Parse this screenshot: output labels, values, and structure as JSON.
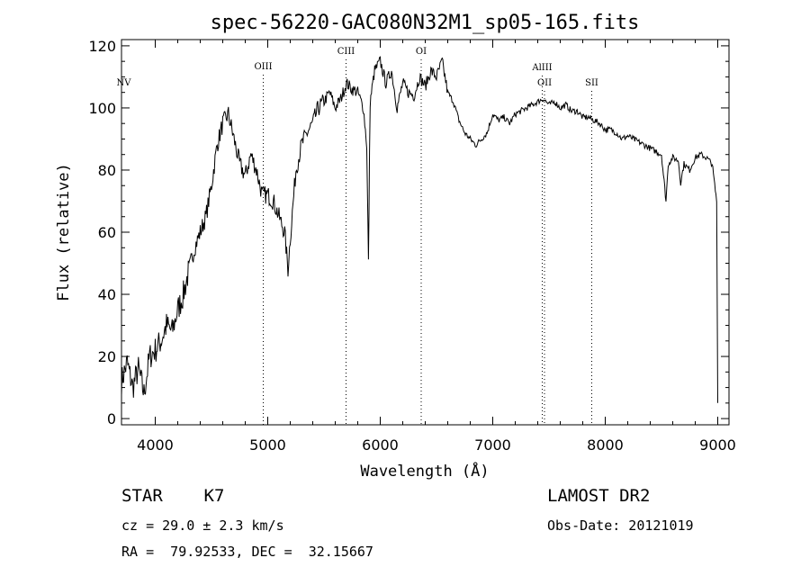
{
  "chart_data": {
    "type": "line",
    "title": "spec-56220-GAC080N32M1_sp05-165.fits",
    "xlabel": "Wavelength (Å)",
    "ylabel": "Flux (relative)",
    "xlim": [
      3700,
      9100
    ],
    "ylim": [
      -2,
      122
    ],
    "xticks": [
      4000,
      5000,
      6000,
      7000,
      8000,
      9000
    ],
    "yticks": [
      0,
      20,
      40,
      60,
      80,
      100,
      120
    ],
    "grid": false,
    "line_color": "#000000",
    "series": [
      {
        "x": [
          3700,
          3750,
          3800,
          3850,
          3900,
          3950,
          4000,
          4050,
          4100,
          4150,
          4200,
          4250,
          4300,
          4350,
          4400,
          4450,
          4500,
          4550,
          4600,
          4650,
          4700,
          4750,
          4800,
          4850,
          4900,
          4950,
          5000,
          5050,
          5100,
          5150,
          5180,
          5200,
          5250,
          5300,
          5350,
          5400,
          5450,
          5500,
          5550,
          5600,
          5650,
          5700,
          5750,
          5800,
          5850,
          5880,
          5895,
          5910,
          5950,
          6000,
          6050,
          6100,
          6150,
          6200,
          6250,
          6300,
          6350,
          6400,
          6450,
          6500,
          6550,
          6600,
          6650,
          6700,
          6750,
          6800,
          6850,
          6900,
          6950,
          7000,
          7050,
          7100,
          7150,
          7200,
          7250,
          7300,
          7350,
          7400,
          7450,
          7500,
          7550,
          7600,
          7650,
          7700,
          7750,
          7800,
          7850,
          7900,
          7950,
          8000,
          8050,
          8100,
          8150,
          8200,
          8250,
          8300,
          8350,
          8400,
          8450,
          8500,
          8540,
          8560,
          8600,
          8650,
          8670,
          8700,
          8750,
          8800,
          8850,
          8900,
          8950,
          8990,
          9000
        ],
        "y": [
          12,
          18,
          10,
          16,
          8,
          20,
          22,
          25,
          30,
          28,
          35,
          40,
          48,
          55,
          60,
          65,
          75,
          88,
          95,
          98,
          90,
          82,
          78,
          85,
          80,
          72,
          72,
          70,
          65,
          60,
          48,
          58,
          80,
          88,
          92,
          95,
          100,
          102,
          105,
          100,
          103,
          108,
          106,
          105,
          100,
          88,
          50,
          102,
          112,
          115,
          108,
          112,
          100,
          108,
          105,
          104,
          110,
          107,
          112,
          110,
          115,
          105,
          102,
          96,
          92,
          90,
          88,
          90,
          92,
          98,
          96,
          97,
          95,
          98,
          99,
          100,
          101,
          102,
          103,
          101,
          102,
          100,
          101,
          99,
          99,
          97,
          97,
          96,
          95,
          93,
          93,
          92,
          90,
          91,
          90,
          89,
          88,
          87,
          86,
          85,
          70,
          82,
          84,
          83,
          76,
          82,
          80,
          84,
          85,
          84,
          82,
          70,
          5
        ]
      }
    ],
    "lines": [
      {
        "label": "NV",
        "x": 3720,
        "dotted": false
      },
      {
        "label": "OIII",
        "x": 4960,
        "dotted": true
      },
      {
        "label": "CIII",
        "x": 5696,
        "dotted": true
      },
      {
        "label": "OI",
        "x": 6364,
        "dotted": true
      },
      {
        "label": "AlIII",
        "x": 7440,
        "dotted": true
      },
      {
        "label": "OII",
        "x": 7460,
        "dotted": true
      },
      {
        "label": "SII",
        "x": 7880,
        "dotted": true
      }
    ]
  },
  "footer": {
    "object_type": "STAR    K7",
    "survey": "LAMOST DR2",
    "redshift": "cz = 29.0 ± 2.3 km/s",
    "obs_date": "Obs-Date: 20121019",
    "coordinates": "RA =  79.92533, DEC =  32.15667"
  }
}
